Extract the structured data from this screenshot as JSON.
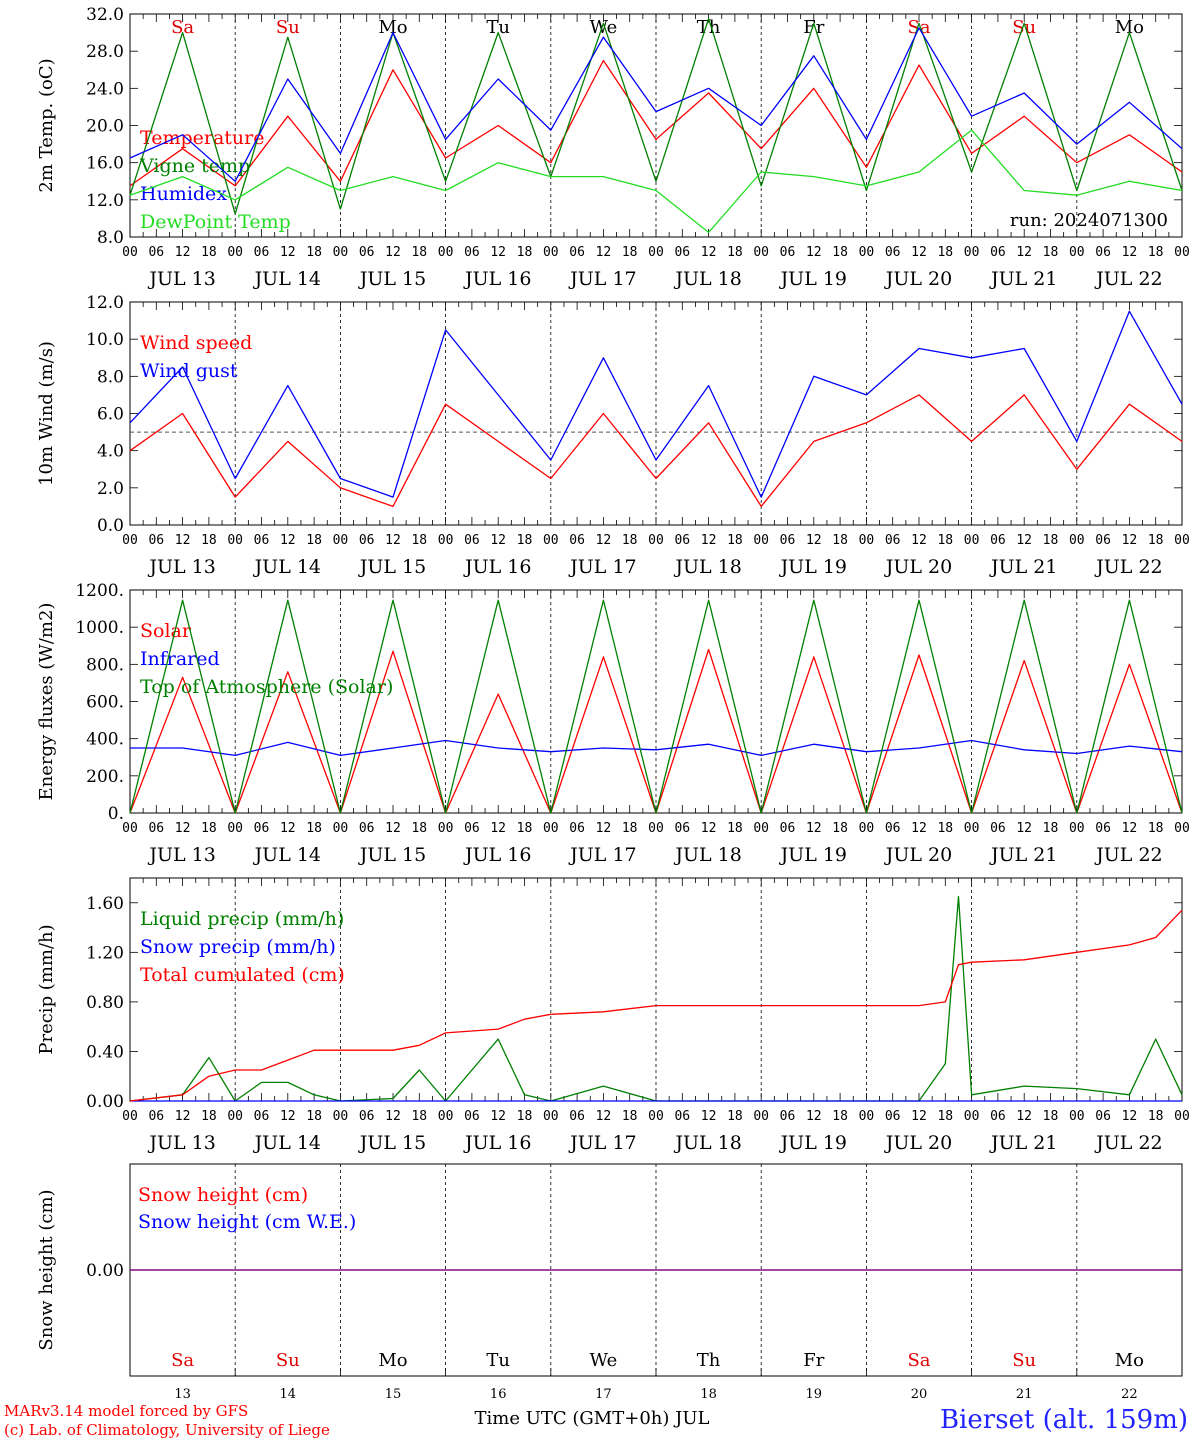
{
  "run_label": "run: 2024071300",
  "footer": {
    "credit1": "MARv3.14 model forced by GFS",
    "credit2": "(c) Lab. of Climatology, University of Liege",
    "xlabel": "Time UTC (GMT+0h) JUL",
    "station": "Bierset (alt. 159m)"
  },
  "days": {
    "dates": [
      "JUL 13",
      "JUL 14",
      "JUL 15",
      "JUL 16",
      "JUL 17",
      "JUL 18",
      "JUL 19",
      "JUL 20",
      "JUL 21",
      "JUL 22"
    ],
    "day_numbers": [
      "13",
      "14",
      "15",
      "16",
      "17",
      "18",
      "19",
      "20",
      "21",
      "22"
    ],
    "weekdays": [
      "Sa",
      "Su",
      "Mo",
      "Tu",
      "We",
      "Th",
      "Fr",
      "Sa",
      "Su",
      "Mo"
    ],
    "weekend_color": "#e00000",
    "weekday_color": "#000000"
  },
  "hour_ticks": [
    "00",
    "06",
    "12",
    "18"
  ],
  "colors": {
    "red": "#ff0000",
    "blue": "#0000ff",
    "green": "#008000",
    "lightgreen": "#22dd22",
    "purple": "#800080"
  },
  "chart_data": [
    {
      "type": "line",
      "ylabel": "2m Temp. (oC)",
      "ylim": [
        8.0,
        32.0
      ],
      "yticks": [
        "8.0",
        "12.0",
        "16.0",
        "20.0",
        "24.0",
        "28.0",
        "32.0"
      ],
      "x_hours": [
        0,
        12,
        24,
        36,
        48,
        60,
        72,
        84,
        96,
        108,
        120,
        132,
        144,
        156,
        168,
        180,
        192,
        204,
        216,
        228,
        240
      ],
      "series": [
        {
          "name": "Temperature",
          "color": "#ff0000",
          "values": [
            13.5,
            17.5,
            13.5,
            21.0,
            14.0,
            26.0,
            16.5,
            20.0,
            16.0,
            27.0,
            18.5,
            23.5,
            17.5,
            24.0,
            15.5,
            26.5,
            17.0,
            21.0,
            16.0,
            19.0,
            15.0
          ]
        },
        {
          "name": "Vigne temp",
          "color": "#008000",
          "values": [
            12.5,
            30.0,
            10.5,
            29.5,
            11.0,
            30.0,
            14.0,
            30.0,
            14.5,
            31.0,
            14.0,
            31.5,
            13.5,
            31.0,
            13.0,
            31.0,
            15.0,
            31.0,
            13.0,
            30.0,
            13.0
          ]
        },
        {
          "name": "Humidex",
          "color": "#0000ff",
          "values": [
            16.5,
            19.0,
            14.0,
            25.0,
            17.0,
            30.0,
            18.5,
            25.0,
            19.5,
            29.5,
            21.5,
            24.0,
            20.0,
            27.5,
            18.5,
            30.5,
            21.0,
            23.5,
            18.0,
            22.5,
            17.5
          ]
        },
        {
          "name": "DewPoint Temp",
          "color": "#22dd22",
          "values": [
            12.5,
            14.5,
            12.0,
            15.5,
            13.0,
            14.5,
            13.0,
            16.0,
            14.5,
            14.5,
            13.0,
            8.5,
            15.0,
            14.5,
            13.5,
            15.0,
            19.5,
            13.0,
            12.5,
            14.0,
            13.0
          ]
        }
      ]
    },
    {
      "type": "line",
      "ylabel": "10m Wind (m/s)",
      "ylim": [
        0.0,
        12.0
      ],
      "yticks": [
        "0.0",
        "2.0",
        "4.0",
        "6.0",
        "8.0",
        "10.0",
        "12.0"
      ],
      "reference_line": 5.0,
      "x_hours": [
        0,
        12,
        24,
        36,
        48,
        60,
        72,
        84,
        96,
        108,
        120,
        132,
        144,
        156,
        168,
        180,
        192,
        204,
        216,
        228,
        240
      ],
      "series": [
        {
          "name": "Wind speed",
          "color": "#ff0000",
          "values": [
            4.0,
            6.0,
            1.5,
            4.5,
            2.0,
            1.0,
            6.5,
            4.5,
            2.5,
            6.0,
            2.5,
            5.5,
            1.0,
            4.5,
            5.5,
            7.0,
            4.5,
            7.0,
            3.0,
            6.5,
            4.5
          ]
        },
        {
          "name": "Wind gust",
          "color": "#0000ff",
          "values": [
            5.5,
            8.5,
            2.5,
            7.5,
            2.5,
            1.5,
            10.5,
            7.0,
            3.5,
            9.0,
            3.5,
            7.5,
            1.5,
            8.0,
            7.0,
            9.5,
            9.0,
            9.5,
            4.5,
            11.5,
            6.5
          ]
        }
      ]
    },
    {
      "type": "line",
      "ylabel": "Energy fluxes (W/m2)",
      "ylim": [
        0,
        1200
      ],
      "yticks": [
        "0.",
        "200.",
        "400.",
        "600.",
        "800.",
        "1000.",
        "1200."
      ],
      "x_hours": [
        0,
        12,
        24,
        36,
        48,
        60,
        72,
        84,
        96,
        108,
        120,
        132,
        144,
        156,
        168,
        180,
        192,
        204,
        216,
        228,
        240
      ],
      "series": [
        {
          "name": "Solar",
          "color": "#ff0000",
          "values": [
            0,
            730,
            0,
            760,
            0,
            870,
            0,
            640,
            0,
            840,
            0,
            880,
            0,
            840,
            0,
            850,
            0,
            820,
            0,
            800,
            0
          ]
        },
        {
          "name": "Infrared",
          "color": "#0000ff",
          "values": [
            350,
            350,
            310,
            380,
            310,
            350,
            390,
            350,
            330,
            350,
            340,
            370,
            310,
            370,
            330,
            350,
            390,
            340,
            320,
            360,
            330
          ]
        },
        {
          "name": "Top of Atmosphere (Solar)",
          "color": "#008000",
          "values": [
            0,
            1145,
            0,
            1145,
            0,
            1145,
            0,
            1145,
            0,
            1145,
            0,
            1145,
            0,
            1145,
            0,
            1145,
            0,
            1145,
            0,
            1145,
            0
          ]
        }
      ]
    },
    {
      "type": "line",
      "ylabel": "Precip (mm/h)",
      "ylim": [
        0.0,
        1.8
      ],
      "yticks": [
        "0.00",
        "0.40",
        "0.80",
        "1.20",
        "1.60"
      ],
      "x_hours": [
        0,
        12,
        18,
        24,
        30,
        36,
        42,
        48,
        60,
        66,
        72,
        84,
        90,
        96,
        108,
        120,
        132,
        144,
        156,
        168,
        180,
        186,
        189,
        192,
        204,
        216,
        228,
        234,
        240
      ],
      "series": [
        {
          "name": "Liquid precip (mm/h)",
          "color": "#008000",
          "values": [
            0.0,
            0.05,
            0.35,
            0.0,
            0.15,
            0.15,
            0.05,
            0.0,
            0.02,
            0.25,
            0.0,
            0.5,
            0.05,
            0.0,
            0.12,
            0.0,
            0.0,
            0.0,
            0.0,
            0.0,
            0.0,
            0.3,
            1.65,
            0.05,
            0.12,
            0.1,
            0.05,
            0.5,
            0.05
          ]
        },
        {
          "name": "Snow precip (mm/h)",
          "color": "#0000ff",
          "values": [
            0,
            0,
            0,
            0,
            0,
            0,
            0,
            0,
            0,
            0,
            0,
            0,
            0,
            0,
            0,
            0,
            0,
            0,
            0,
            0,
            0,
            0,
            0,
            0,
            0,
            0,
            0,
            0,
            0
          ]
        },
        {
          "name": "Total cumulated (cm)",
          "color": "#ff0000",
          "values": [
            0.0,
            0.05,
            0.2,
            0.25,
            0.25,
            0.33,
            0.41,
            0.41,
            0.41,
            0.45,
            0.55,
            0.58,
            0.66,
            0.7,
            0.72,
            0.77,
            0.77,
            0.77,
            0.77,
            0.77,
            0.77,
            0.8,
            1.1,
            1.12,
            1.14,
            1.2,
            1.26,
            1.32,
            1.54
          ]
        }
      ]
    },
    {
      "type": "line",
      "ylabel": "Snow height (cm)",
      "yticks": [
        "0.00"
      ],
      "x_hours": [
        0,
        240
      ],
      "series": [
        {
          "name": "Snow height (cm)",
          "color": "#ff0000",
          "values": [
            0,
            0
          ]
        },
        {
          "name": "Snow height (cm W.E.)",
          "color": "#0000ff",
          "values": [
            0,
            0
          ]
        }
      ]
    }
  ]
}
